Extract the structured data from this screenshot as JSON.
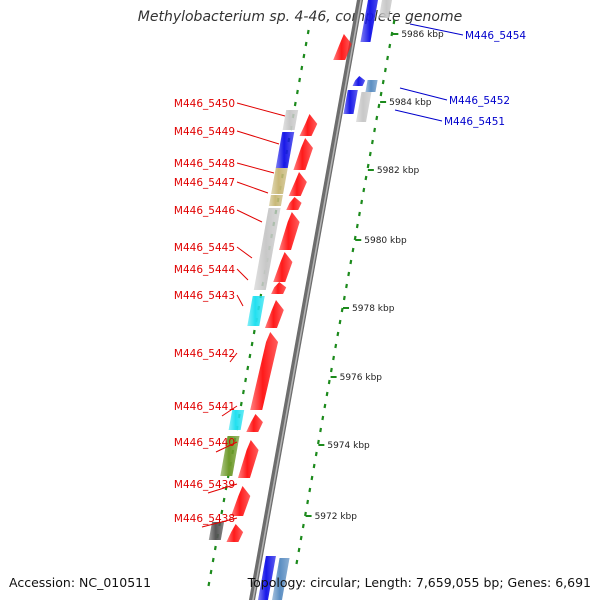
{
  "title": "Methylobacterium sp. 4-46, complete genome",
  "accession_text": "Accession: NC_010511",
  "summary_text": "Topology: circular; Length: 7,659,055 bp; Genes: 6,691",
  "colors": {
    "backbone": "#8c8c8c",
    "forward": "#ff1a1a",
    "blue": "#1818e8",
    "gray": "#c8c8c8",
    "tan": "#c8b878",
    "cyan": "#22e0f0",
    "olive": "#6e9a2a",
    "dark": "#555555",
    "steel": "#5b8ec2",
    "tick": "#1c8a1c",
    "left_label": "#e00000",
    "right_label": "#0000cc"
  },
  "scale_labels": [
    "5986 kbp",
    "5984 kbp",
    "5982 kbp",
    "5980 kbp",
    "5978 kbp",
    "5976 kbp",
    "5974 kbp",
    "5972 kbp"
  ],
  "left_gene_labels": [
    "M446_5450",
    "M446_5449",
    "M446_5448",
    "M446_5447",
    "M446_5446",
    "M446_5445",
    "M446_5444",
    "M446_5443",
    "M446_5442",
    "M446_5441",
    "M446_5440",
    "M446_5439",
    "M446_5438"
  ],
  "right_gene_labels": [
    "M446_5454",
    "M446_5452",
    "M446_5451"
  ]
}
